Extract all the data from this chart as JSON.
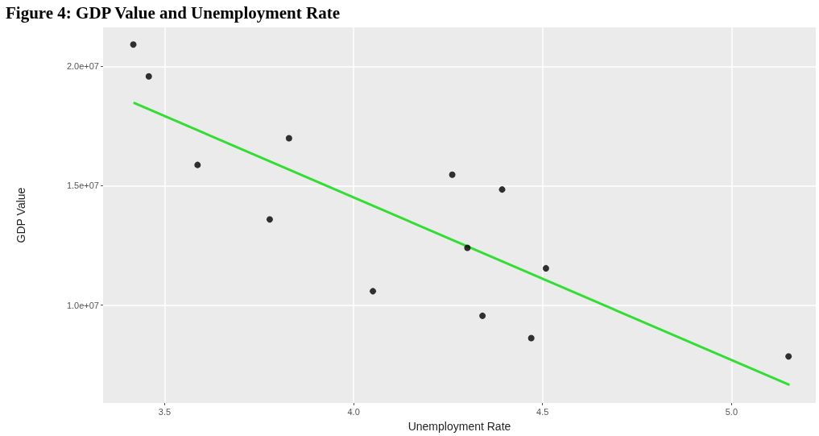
{
  "chart_data": {
    "type": "scatter",
    "title": "Figure 4: GDP Value and Unemployment Rate",
    "xlabel": "Unemployment Rate",
    "ylabel": "GDP Value",
    "xlim": [
      3.337,
      5.223
    ],
    "xticks": [
      3.5,
      {
        "value": 4,
        "label": "4.0"
      },
      4.5,
      {
        "value": 5,
        "label": "5.0"
      }
    ],
    "ylim": [
      5900000,
      21630000
    ],
    "yticks": [
      {
        "value": 10000000,
        "label": "1.0e+07"
      },
      {
        "value": 15000000,
        "label": "1.5e+07"
      },
      {
        "value": 20000000,
        "label": "2.0e+07"
      }
    ],
    "grid": true,
    "marker": "circle",
    "series": [
      {
        "color": "#000000",
        "x": [
          3.417,
          3.458,
          3.587,
          3.778,
          3.829,
          4.051,
          4.261,
          4.301,
          4.341,
          4.393,
          4.47,
          4.509,
          5.151
        ],
        "values": [
          20910000,
          19580000,
          15870000,
          13590000,
          16990000,
          10580000,
          15460000,
          12400000,
          9550000,
          14840000,
          8620000,
          11540000,
          7850000
        ]
      },
      {
        "type": "line",
        "color": "#33dd33",
        "marker": "none",
        "line_style": "solid",
        "x": [
          3.42,
          5.151
        ],
        "values": [
          18460000,
          6670000
        ]
      }
    ]
  }
}
